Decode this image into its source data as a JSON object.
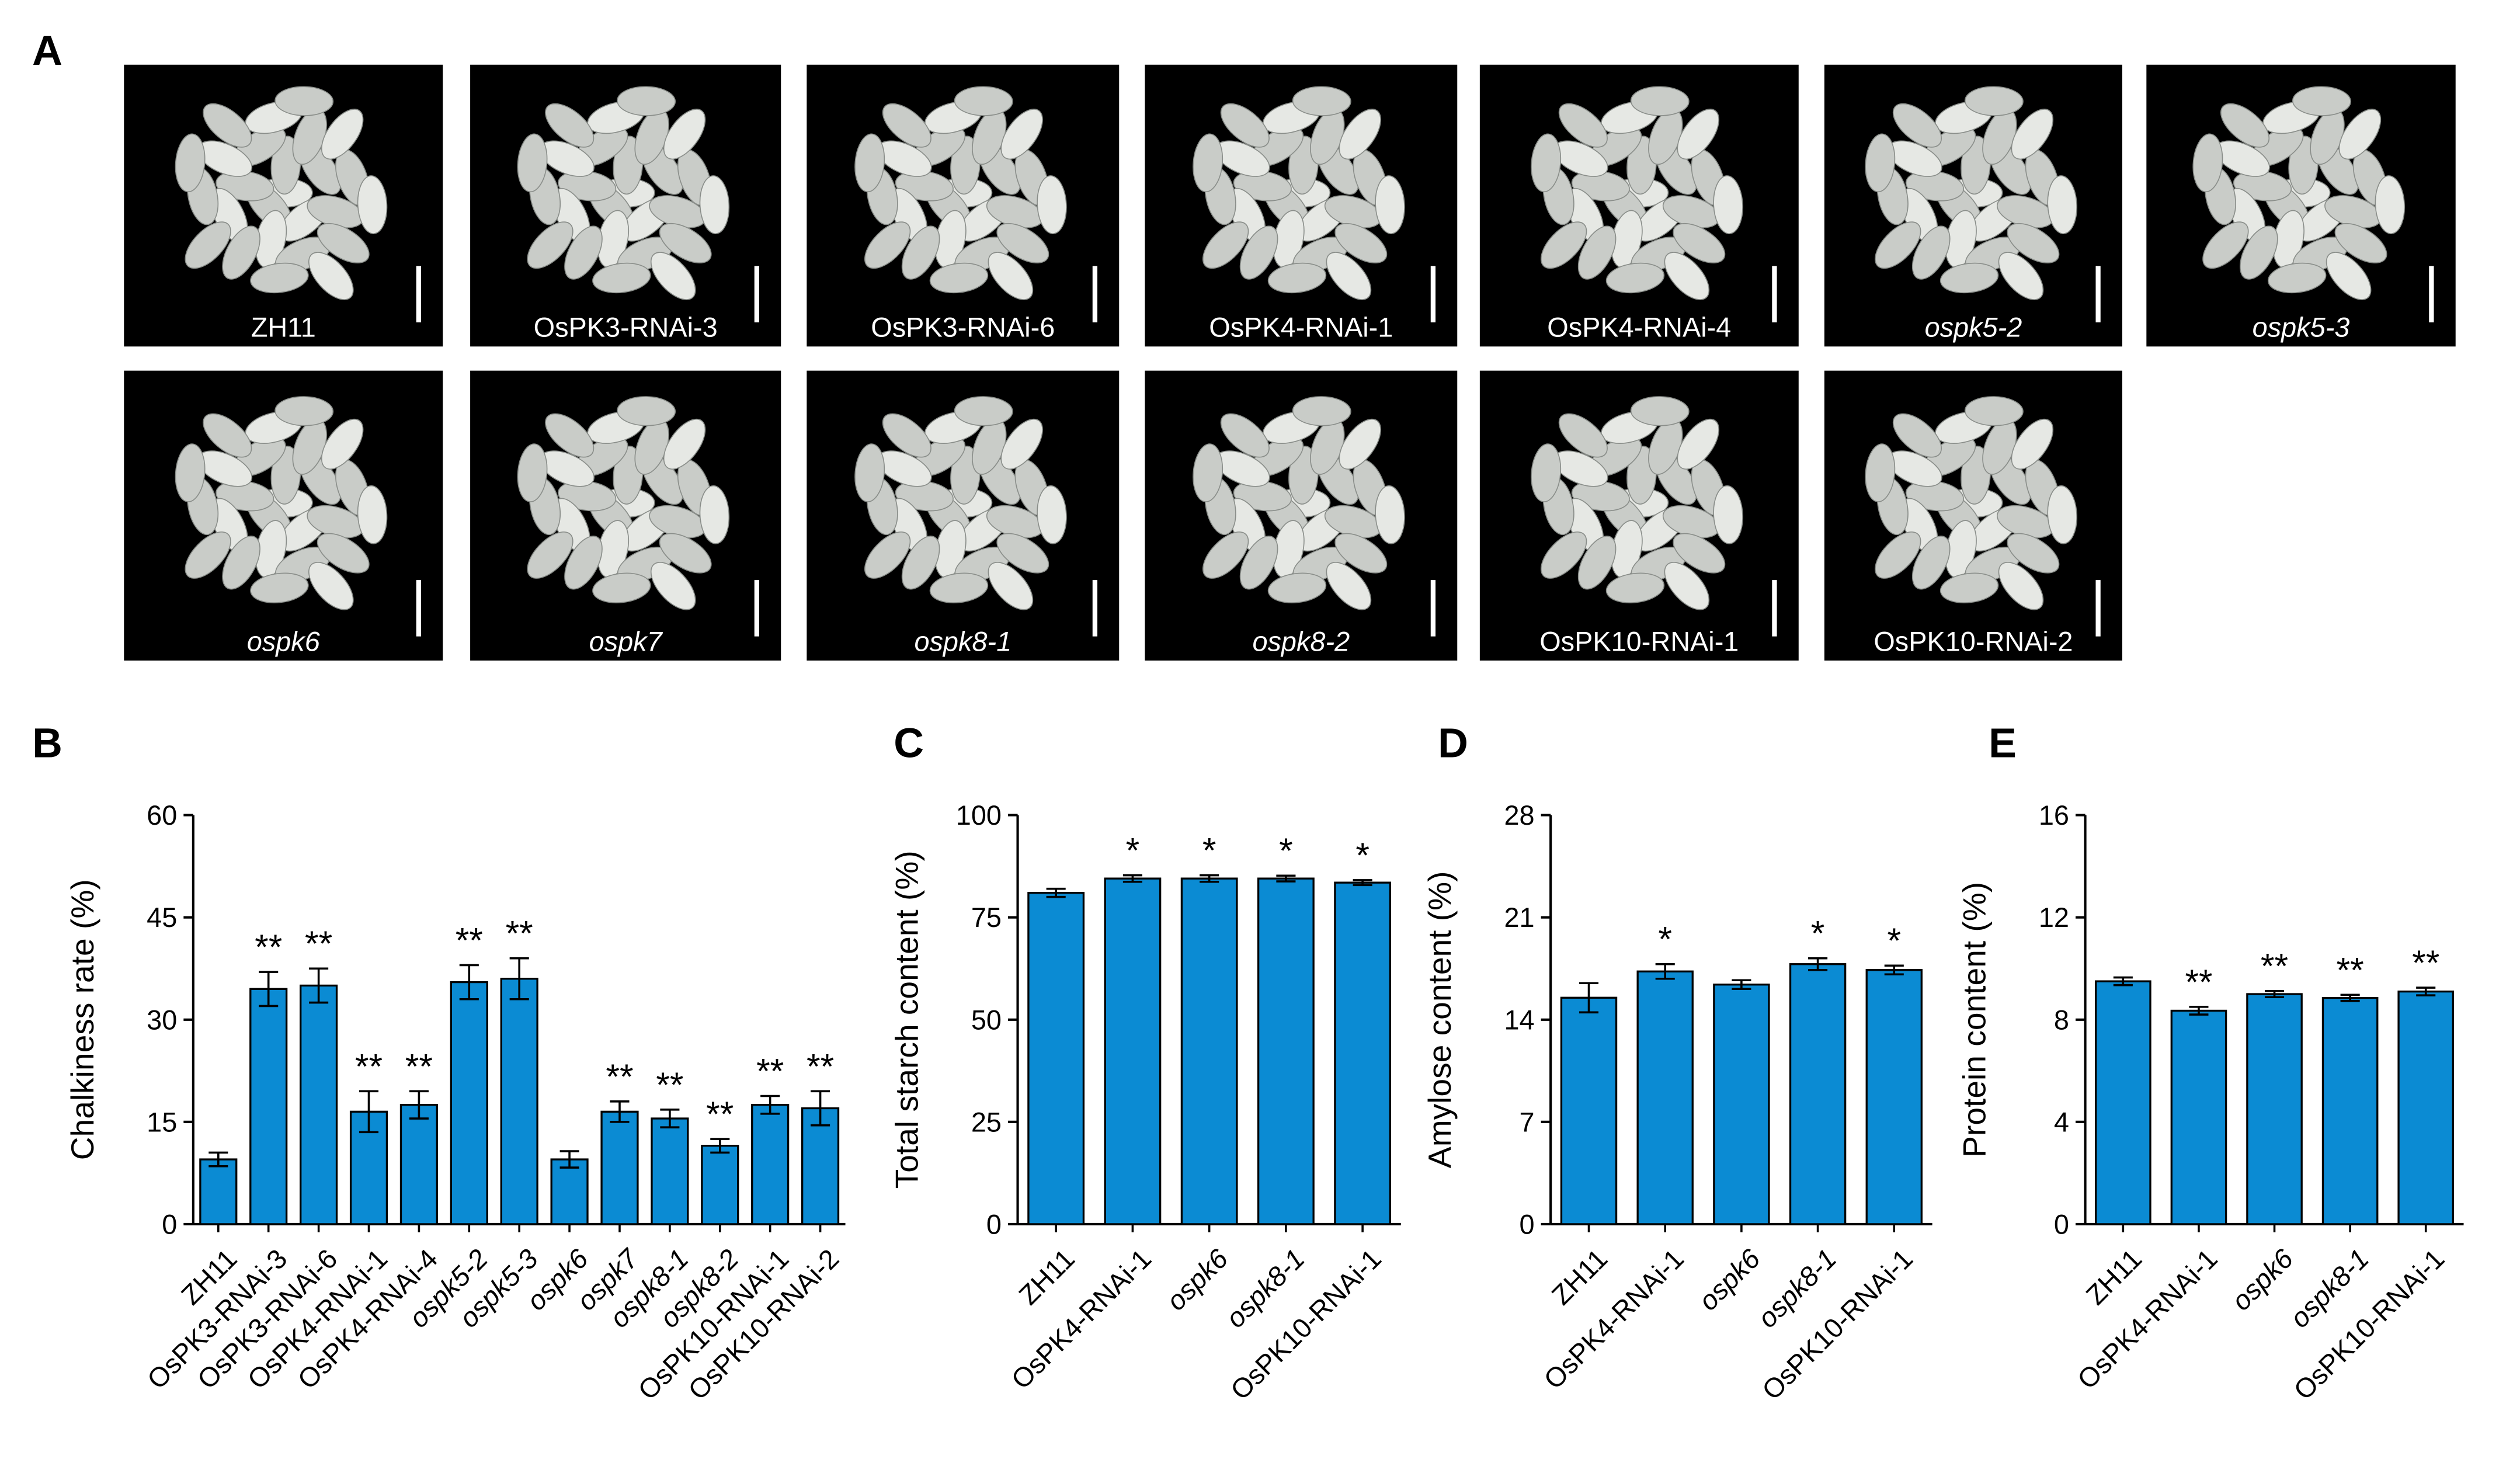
{
  "panel_a": {
    "label": "A",
    "images": [
      "ZH11",
      "OsPK3-RNAi-3",
      "OsPK3-RNAi-6",
      "OsPK4-RNAi-1",
      "OsPK4-RNAi-4",
      "ospk5-2",
      "ospk5-3",
      "ospk6",
      "ospk7",
      "ospk8-1",
      "ospk8-2",
      "OsPK10-RNAi-1",
      "OsPK10-RNAi-2"
    ]
  },
  "chart_data": [
    {
      "type": "bar",
      "panel": "B",
      "ylabel": "Chalkiness rate (%)",
      "color": "#0b8bd3",
      "categories": [
        "ZH11",
        "OsPK3-RNAi-3",
        "OsPK3-RNAi-6",
        "OsPK4-RNAi-1",
        "OsPK4-RNAi-4",
        "ospk5-2",
        "ospk5-3",
        "ospk6",
        "ospk7",
        "ospk8-1",
        "ospk8-2",
        "OsPK10-RNAi-1",
        "OsPK10-RNAi-2"
      ],
      "values": [
        9.5,
        34.5,
        35,
        16.5,
        17.5,
        35.5,
        36,
        9.5,
        16.5,
        15.5,
        11.5,
        17.5,
        17
      ],
      "errors": [
        1,
        2.5,
        2.5,
        3,
        2,
        2.5,
        3,
        1.2,
        1.5,
        1.3,
        1,
        1.3,
        2.5
      ],
      "significance": [
        null,
        "**",
        "**",
        "**",
        "**",
        "**",
        "**",
        null,
        "**",
        "**",
        "**",
        "**",
        "**"
      ],
      "ylim": [
        0,
        60
      ],
      "yticks": [
        0,
        15,
        30,
        45,
        60
      ]
    },
    {
      "type": "bar",
      "panel": "C",
      "ylabel": "Total starch content (%)",
      "color": "#0b8bd3",
      "categories": [
        "ZH11",
        "OsPK4-RNAi-1",
        "ospk6",
        "ospk8-1",
        "OsPK10-RNAi-1"
      ],
      "values": [
        81,
        84.5,
        84.5,
        84.5,
        83.5
      ],
      "errors": [
        1,
        0.8,
        0.8,
        0.7,
        0.6
      ],
      "significance": [
        null,
        "*",
        "*",
        "*",
        "*"
      ],
      "ylim": [
        0,
        100
      ],
      "yticks": [
        0,
        25,
        50,
        75,
        100
      ]
    },
    {
      "type": "bar",
      "panel": "D",
      "ylabel": "Amylose content (%)",
      "color": "#0b8bd3",
      "categories": [
        "ZH11",
        "OsPK4-RNAi-1",
        "ospk6",
        "ospk8-1",
        "OsPK10-RNAi-1"
      ],
      "values": [
        15.5,
        17.3,
        16.4,
        17.8,
        17.4
      ],
      "errors": [
        1,
        0.5,
        0.3,
        0.4,
        0.3
      ],
      "significance": [
        null,
        "*",
        null,
        "*",
        "*"
      ],
      "ylim": [
        0,
        28
      ],
      "yticks": [
        0,
        7,
        14,
        21,
        28
      ]
    },
    {
      "type": "bar",
      "panel": "E",
      "ylabel": "Protein content (%)",
      "color": "#0b8bd3",
      "categories": [
        "ZH11",
        "OsPK4-RNAi-1",
        "ospk6",
        "ospk8-1",
        "OsPK10-RNAi-1"
      ],
      "values": [
        9.5,
        8.35,
        9.0,
        8.85,
        9.1
      ],
      "errors": [
        0.15,
        0.15,
        0.12,
        0.12,
        0.15
      ],
      "significance": [
        null,
        "**",
        "**",
        "**",
        "**"
      ],
      "ylim": [
        0,
        16
      ],
      "yticks": [
        0,
        4,
        8,
        12,
        16
      ]
    }
  ]
}
